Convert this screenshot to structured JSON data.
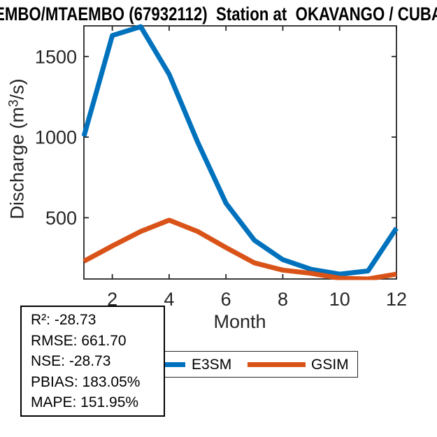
{
  "chart_data": {
    "type": "line",
    "title": "EMBO/MTAEMBO (67932112)  Station at  OKAVANGO / CUBA",
    "xlabel": "Month",
    "ylabel": "Discharge (m³/s)",
    "x": [
      1,
      2,
      3,
      4,
      5,
      6,
      7,
      8,
      9,
      10,
      11,
      12
    ],
    "xlim": [
      1,
      12
    ],
    "ylim": [
      120,
      1690
    ],
    "xticks": [
      2,
      4,
      6,
      8,
      10,
      12
    ],
    "yticks": [
      500,
      1000,
      1500
    ],
    "grid": false,
    "legend_position": "below-axis",
    "series": [
      {
        "name": "E3SM",
        "color": "#0072BD",
        "values": [
          1005,
          1630,
          1685,
          1390,
          970,
          590,
          360,
          240,
          180,
          150,
          170,
          435
        ]
      },
      {
        "name": "GSIM",
        "color": "#D95319",
        "values": [
          230,
          325,
          415,
          485,
          415,
          315,
          220,
          175,
          155,
          125,
          120,
          150
        ]
      }
    ]
  },
  "stats_box": {
    "lines": [
      "R²: -28.73",
      "RMSE: 661.70",
      "NSE: -28.73",
      "PBIAS: 183.05%",
      "MAPE: 151.95%"
    ]
  },
  "axis_color": "#262626"
}
